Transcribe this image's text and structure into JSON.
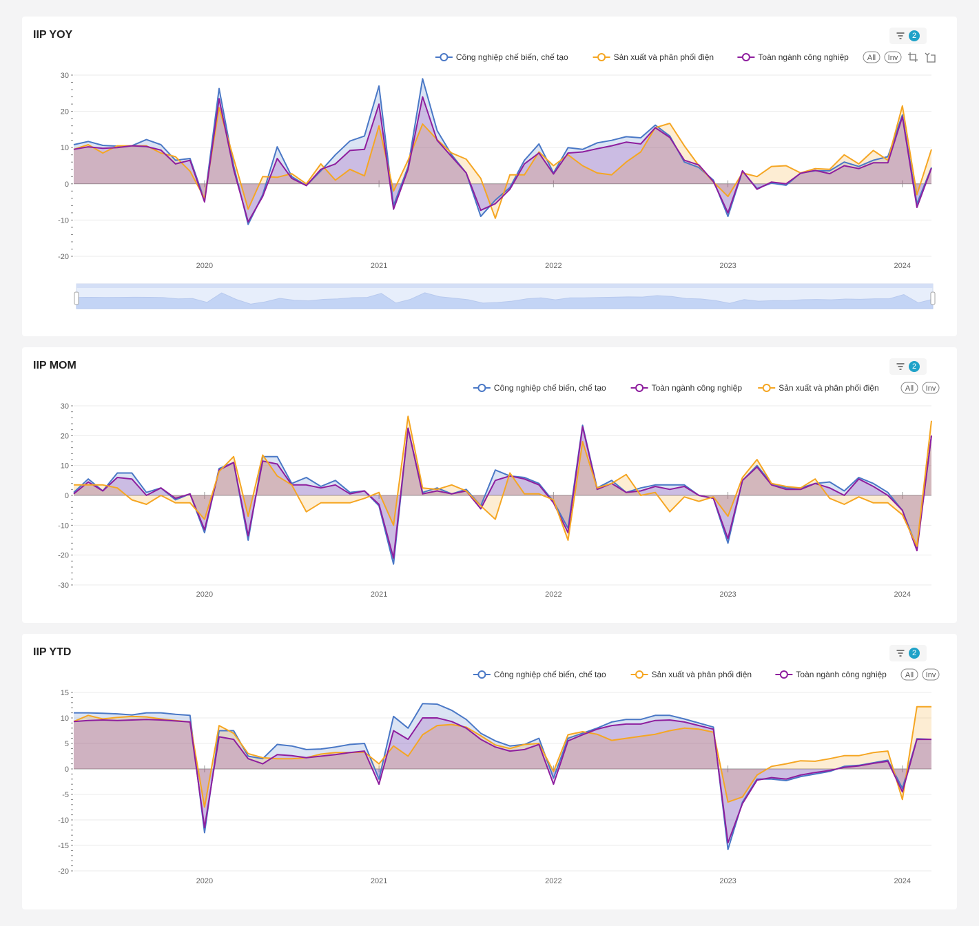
{
  "colors": {
    "blue": "#4a78c6",
    "orange": "#f5a623",
    "purple": "#8e1e9e"
  },
  "cards": [
    {
      "title": "IIP YOY",
      "filter_count": "2",
      "legend_all": "All",
      "legend_inv": "Inv",
      "chart_data": {
        "type": "area",
        "title": "IIP YOY",
        "x_start": "2019-04",
        "x_end": "2024-03",
        "x_tick_labels": [
          "2020",
          "2021",
          "2022",
          "2023",
          "2024"
        ],
        "y_tick_labels": [
          "30",
          "20",
          "10",
          "0",
          "-10",
          "-20"
        ],
        "ylim": [
          -20,
          30
        ],
        "legend": [
          "Công nghiệp chế biến, chế tạo",
          "Sản xuất và phân phối điện",
          "Toàn ngành công nghiệp"
        ],
        "series": [
          {
            "name": "Công nghiệp chế biến, chế tạo",
            "color": "#4a78c6",
            "values": [
              10.8,
              11.7,
              10.6,
              10.4,
              10.5,
              12.2,
              10.8,
              6.5,
              7.0,
              -4.5,
              26.3,
              5.0,
              -11.2,
              -3.0,
              10.2,
              2.0,
              -0.5,
              3.6,
              8.0,
              11.8,
              13.2,
              27.0,
              -6.0,
              4.7,
              29.0,
              14.7,
              8.0,
              3.0,
              -9.0,
              -4.5,
              -1.0,
              6.5,
              11.0,
              3.0,
              10.0,
              9.5,
              11.3,
              12.0,
              13.0,
              12.7,
              16.2,
              13.2,
              6.0,
              4.5,
              1.0,
              -9.0,
              3.5,
              -1.3,
              0.2,
              -0.4,
              3.0,
              3.6,
              3.6,
              6.0,
              4.8,
              6.5,
              7.5,
              19.0,
              -5.5,
              4.5
            ]
          },
          {
            "name": "Sản xuất và phân phối điện",
            "color": "#f5a623",
            "values": [
              9.5,
              10.8,
              8.5,
              10.5,
              10.5,
              10.5,
              8.5,
              7.5,
              3.5,
              -4.0,
              21.0,
              7.0,
              -7.0,
              2.0,
              1.8,
              2.8,
              0.0,
              5.5,
              1.0,
              4.0,
              2.2,
              16.0,
              -2.0,
              6.5,
              16.5,
              12.2,
              8.5,
              6.8,
              1.5,
              -9.5,
              2.5,
              2.5,
              8.8,
              5.0,
              8.0,
              5.0,
              3.0,
              2.5,
              6.0,
              8.8,
              15.5,
              16.7,
              10.5,
              5.0,
              0.5,
              -3.5,
              3.0,
              2.0,
              4.8,
              5.0,
              3.0,
              4.2,
              4.0,
              8.0,
              5.5,
              9.2,
              6.5,
              21.5,
              -3.0,
              9.5
            ]
          },
          {
            "name": "Toàn ngành công nghiệp",
            "color": "#8e1e9e",
            "values": [
              9.5,
              10.2,
              9.8,
              10.0,
              10.5,
              10.3,
              9.3,
              5.5,
              6.5,
              -5.0,
              23.5,
              4.0,
              -10.5,
              -3.5,
              7.0,
              1.5,
              -0.5,
              4.0,
              5.5,
              9.2,
              9.5,
              22.0,
              -7.0,
              4.0,
              24.0,
              12.0,
              7.5,
              3.0,
              -7.3,
              -5.5,
              -1.5,
              5.5,
              8.5,
              2.7,
              8.5,
              8.8,
              9.7,
              10.5,
              11.5,
              11.0,
              15.5,
              12.8,
              6.5,
              5.2,
              0.6,
              -8.0,
              3.6,
              -1.5,
              0.5,
              0.0,
              2.9,
              3.7,
              2.8,
              5.0,
              4.2,
              5.8,
              5.8,
              18.5,
              -6.5,
              4.3
            ]
          }
        ]
      }
    },
    {
      "title": "IIP MOM",
      "filter_count": "2",
      "legend_all": "All",
      "legend_inv": "Inv",
      "chart_data": {
        "type": "area",
        "title": "IIP MOM",
        "x_start": "2019-04",
        "x_end": "2024-03",
        "x_tick_labels": [
          "2020",
          "2021",
          "2022",
          "2023",
          "2024"
        ],
        "y_tick_labels": [
          "30",
          "20",
          "10",
          "0",
          "-10",
          "-20",
          "-30"
        ],
        "ylim": [
          -30,
          30
        ],
        "legend": [
          "Công nghiệp chế biến, chế tạo",
          "Toàn ngành công nghiệp",
          "Sản xuất và phân phối điện"
        ],
        "series": [
          {
            "name": "Công nghiệp chế biến, chế tạo",
            "color": "#4a78c6",
            "values": [
              1.0,
              5.5,
              1.5,
              7.5,
              7.5,
              1.0,
              2.5,
              -1.5,
              0.5,
              -12.5,
              9.0,
              11.0,
              -15.0,
              13.0,
              13.0,
              4.0,
              6.0,
              3.0,
              5.0,
              1.0,
              1.5,
              -3.5,
              -23.0,
              22.5,
              1.0,
              2.5,
              0.5,
              2.0,
              -3.5,
              8.5,
              6.5,
              6.0,
              4.0,
              -2.0,
              -11.0,
              23.5,
              2.5,
              5.0,
              1.0,
              2.5,
              3.5,
              3.5,
              3.5,
              0.0,
              -1.0,
              -16.0,
              5.0,
              10.0,
              4.0,
              2.5,
              2.5,
              4.0,
              4.5,
              1.5,
              6.0,
              4.0,
              1.0,
              -5.0,
              -17.5,
              20.0
            ]
          },
          {
            "name": "Toàn ngành công nghiệp",
            "color": "#8e1e9e",
            "values": [
              0.5,
              4.5,
              1.5,
              6.0,
              5.5,
              0.0,
              2.5,
              -1.0,
              0.5,
              -11.5,
              8.5,
              11.0,
              -13.5,
              11.5,
              10.5,
              3.5,
              3.5,
              2.5,
              3.5,
              0.5,
              1.5,
              -3.0,
              -21.0,
              22.5,
              0.5,
              1.5,
              0.5,
              1.5,
              -4.5,
              5.0,
              6.5,
              5.5,
              3.5,
              -2.5,
              -12.5,
              23.0,
              2.0,
              4.0,
              1.0,
              1.5,
              3.0,
              2.0,
              3.0,
              0.0,
              -1.0,
              -14.5,
              5.0,
              9.5,
              3.5,
              2.0,
              2.0,
              4.0,
              2.5,
              0.0,
              5.5,
              3.0,
              0.0,
              -5.0,
              -18.5,
              20.0
            ]
          },
          {
            "name": "Sản xuất và phân phối điện",
            "color": "#f5a623",
            "values": [
              3.5,
              3.5,
              3.5,
              2.5,
              -1.5,
              -3.0,
              0.0,
              -2.5,
              -2.5,
              -8.0,
              8.0,
              13.0,
              -7.0,
              13.5,
              6.5,
              3.5,
              -5.5,
              -2.5,
              -2.5,
              -2.5,
              -1.0,
              1.0,
              -10.0,
              26.5,
              2.5,
              2.0,
              3.5,
              1.5,
              -3.5,
              -8.0,
              7.5,
              0.5,
              0.5,
              -1.5,
              -15.0,
              18.0,
              2.5,
              4.0,
              7.0,
              0.0,
              1.0,
              -5.5,
              -0.5,
              -2.0,
              -0.5,
              -7.0,
              6.0,
              12.0,
              4.0,
              3.0,
              2.5,
              5.5,
              -1.0,
              -3.0,
              -0.5,
              -2.5,
              -2.5,
              -6.5,
              -17.0,
              25.0
            ]
          }
        ]
      }
    },
    {
      "title": "IIP YTD",
      "filter_count": "2",
      "legend_all": "All",
      "legend_inv": "Inv",
      "chart_data": {
        "type": "area",
        "title": "IIP YTD",
        "x_start": "2019-04",
        "x_end": "2024-03",
        "x_tick_labels": [
          "2020",
          "2021",
          "2022",
          "2023",
          "2024"
        ],
        "y_tick_labels": [
          "15",
          "10",
          "5",
          "0",
          "-5",
          "-10",
          "-15",
          "-20"
        ],
        "ylim": [
          -20,
          15
        ],
        "legend": [
          "Công nghiệp chế biến, chế tạo",
          "Sản xuất và phân phối điện",
          "Toàn ngành công nghiệp"
        ],
        "series": [
          {
            "name": "Công nghiệp chế biến, chế tạo",
            "color": "#4a78c6",
            "values": [
              11.0,
              11.0,
              10.9,
              10.8,
              10.6,
              11.0,
              11.0,
              10.7,
              10.5,
              -12.5,
              7.5,
              7.5,
              2.5,
              2.0,
              4.8,
              4.5,
              3.8,
              3.9,
              4.3,
              4.8,
              5.0,
              -2.0,
              10.3,
              8.0,
              12.8,
              12.7,
              11.5,
              9.7,
              7.0,
              5.5,
              4.5,
              4.8,
              6.0,
              -1.8,
              6.0,
              7.0,
              8.0,
              9.2,
              9.7,
              9.7,
              10.5,
              10.5,
              9.8,
              9.0,
              8.2,
              -15.8,
              -6.5,
              -2.0,
              -2.0,
              -2.3,
              -1.5,
              -1.0,
              -0.5,
              0.5,
              0.7,
              1.2,
              1.7,
              -3.8,
              5.9,
              5.8
            ]
          },
          {
            "name": "Sản xuất và phân phối điện",
            "color": "#f5a623",
            "values": [
              9.3,
              10.5,
              9.8,
              10.1,
              10.3,
              10.2,
              9.8,
              9.5,
              9.2,
              -7.5,
              8.5,
              7.0,
              3.0,
              2.2,
              2.0,
              2.0,
              2.2,
              2.9,
              3.2,
              3.2,
              3.3,
              1.0,
              4.5,
              2.5,
              6.7,
              8.5,
              8.7,
              8.2,
              6.5,
              4.7,
              4.0,
              4.8,
              5.0,
              -0.5,
              6.7,
              7.3,
              6.8,
              5.6,
              6.0,
              6.4,
              6.8,
              7.5,
              8.0,
              7.8,
              7.2,
              -6.5,
              -5.5,
              -1.2,
              0.5,
              1.0,
              1.6,
              1.5,
              2.0,
              2.6,
              2.6,
              3.2,
              3.5,
              -6.0,
              12.2,
              12.2
            ]
          },
          {
            "name": "Toàn ngành công nghiệp",
            "color": "#8e1e9e",
            "values": [
              9.3,
              9.5,
              9.6,
              9.5,
              9.6,
              9.7,
              9.6,
              9.4,
              9.2,
              -11.5,
              6.3,
              5.8,
              2.0,
              1.0,
              2.8,
              2.6,
              2.2,
              2.5,
              2.8,
              3.2,
              3.5,
              -3.0,
              7.5,
              5.8,
              10.0,
              10.0,
              9.3,
              8.0,
              5.8,
              4.3,
              3.5,
              3.8,
              4.8,
              -3.0,
              5.5,
              6.7,
              7.8,
              8.5,
              8.8,
              8.8,
              9.5,
              9.6,
              9.2,
              8.5,
              7.8,
              -14.5,
              -6.8,
              -2.2,
              -1.7,
              -2.0,
              -1.2,
              -0.7,
              -0.3,
              0.3,
              0.6,
              1.1,
              1.5,
              -4.5,
              5.8,
              5.8
            ]
          }
        ]
      }
    }
  ]
}
